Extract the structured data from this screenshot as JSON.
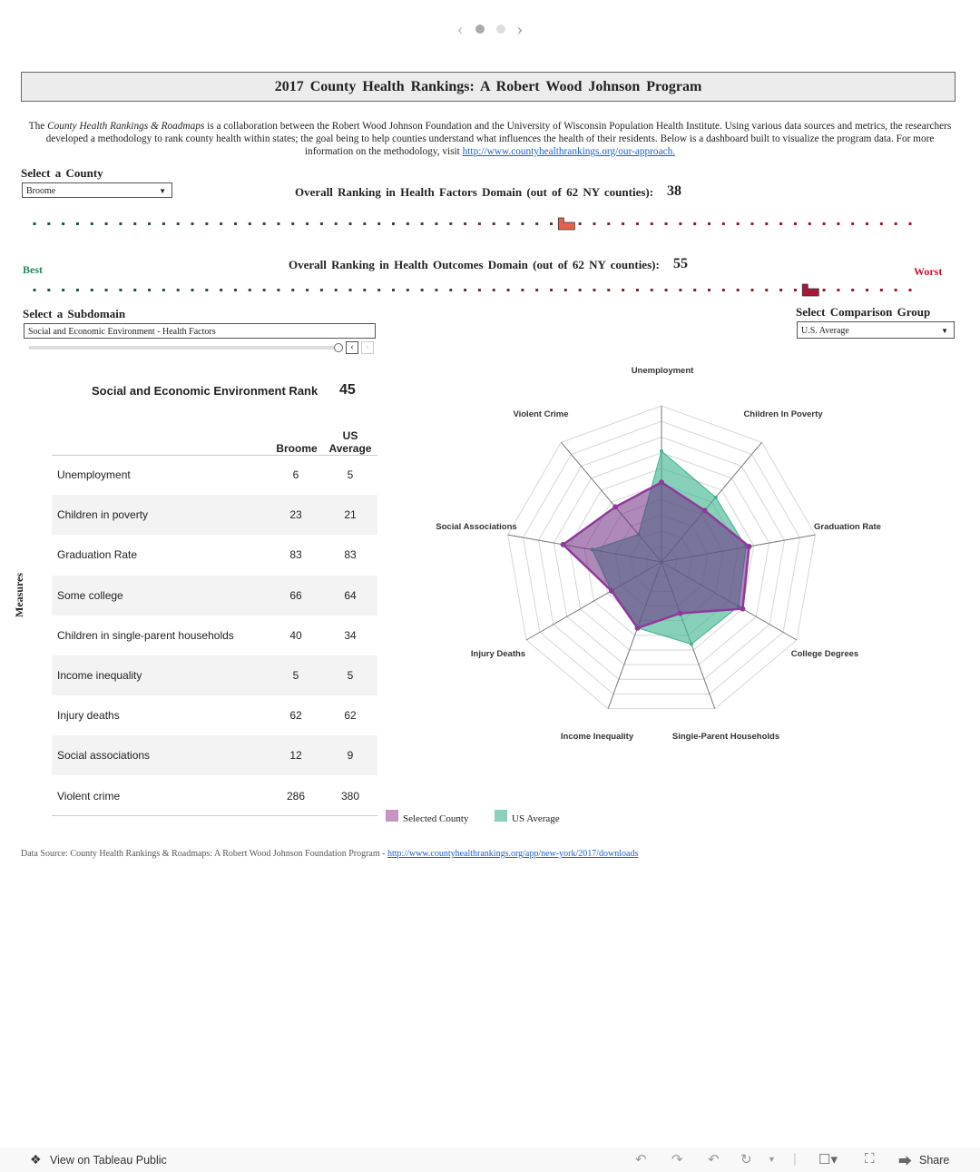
{
  "pager": {
    "prev_icon": "chevron-left-icon",
    "next_icon": "chevron-right-icon",
    "pages": 2,
    "current": 1
  },
  "title": "2017 County Health Rankings: A Robert Wood Johnson Program",
  "intro": {
    "pre": "The ",
    "italic": "County Health Rankings & Roadmaps",
    "post": " is a collaboration between the Robert Wood Johnson Foundation and the University of Wisconsin Population Health Institute. Using various data sources and metrics, the researchers developed a methodology to rank county health within states; the goal being to help counties understand what influences the health of their residents. Below is a dashboard built to visualize the program data. For more information on the methodology, visit ",
    "link": "http://www.countyhealthrankings.org/our-approach."
  },
  "county_select": {
    "label": "Select a County",
    "value": "Broome"
  },
  "factors": {
    "label": "Overall Ranking in Health Factors Domain (out of 62 NY counties):",
    "rank": 38,
    "highlight_color": "#e8604c"
  },
  "outcomes": {
    "label": "Overall Ranking in Health Outcomes Domain (out of 62 NY counties):",
    "rank": 55,
    "highlight_color": "#a8173a"
  },
  "legend_scale": {
    "best": "Best",
    "worst": "Worst",
    "best_color": "#1e8a5a",
    "worst_color": "#d0102e"
  },
  "county_count": 62,
  "subdomain_select": {
    "label": "Select a Subdomain",
    "value": "Social and Economic Environment - Health Factors"
  },
  "comparison_select": {
    "label": "Select Comparison Group",
    "value": "U.S. Average"
  },
  "subdomain_rank": {
    "label": "Social and Economic Environment Rank",
    "value": "45"
  },
  "table": {
    "row_axis_label": "Measures",
    "col_a": "Broome",
    "col_b": "US Average",
    "rows": [
      {
        "name": "Unemployment",
        "a": "6",
        "b": "5"
      },
      {
        "name": "Children in poverty",
        "a": "23",
        "b": "21"
      },
      {
        "name": "Graduation Rate",
        "a": "83",
        "b": "83"
      },
      {
        "name": "Some college",
        "a": "66",
        "b": "64"
      },
      {
        "name": "Children in single-parent households",
        "a": "40",
        "b": "34"
      },
      {
        "name": "Income inequality",
        "a": "5",
        "b": "5"
      },
      {
        "name": "Injury deaths",
        "a": "62",
        "b": "62"
      },
      {
        "name": "Social associations",
        "a": "12",
        "b": "9"
      },
      {
        "name": "Violent crime",
        "a": "286",
        "b": "380"
      }
    ]
  },
  "chart_data": {
    "type": "radar",
    "axes": [
      "Unemployment",
      "Children In Poverty",
      "Graduation Rate",
      "College Degrees",
      "Single-Parent Households",
      "Income Inequality",
      "Injury Deaths",
      "Social Associations",
      "Violent Crime"
    ],
    "range": [
      0,
      1
    ],
    "rings": 10,
    "series": [
      {
        "name": "US Average",
        "color": "#3db38f",
        "values": [
          0.71,
          0.54,
          0.55,
          0.57,
          0.56,
          0.45,
          0.37,
          0.45,
          0.23
        ]
      },
      {
        "name": "Selected County",
        "color": "#8e3a9a",
        "values": [
          0.51,
          0.43,
          0.57,
          0.6,
          0.35,
          0.45,
          0.37,
          0.64,
          0.46
        ]
      }
    ],
    "legend": [
      {
        "label": "Selected County",
        "color": "#c594c5"
      },
      {
        "label": "US Average",
        "color": "#8ad0bd"
      }
    ]
  },
  "source": {
    "text": "Data Source: County Health Rankings & Roadmaps: A Robert Wood Johnson Foundation Program - ",
    "link": "http://www.countyhealthrankings.org/app/new-york/2017/downloads"
  },
  "footer": {
    "view_label": "View on Tableau Public",
    "share_label": "Share"
  }
}
